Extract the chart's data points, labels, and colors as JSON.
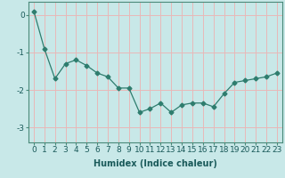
{
  "x": [
    0,
    1,
    2,
    3,
    4,
    5,
    6,
    7,
    8,
    9,
    10,
    11,
    12,
    13,
    14,
    15,
    16,
    17,
    18,
    19,
    20,
    21,
    22,
    23
  ],
  "y": [
    0.1,
    -0.9,
    -1.7,
    -1.3,
    -1.2,
    -1.35,
    -1.55,
    -1.65,
    -1.95,
    -1.95,
    -2.6,
    -2.5,
    -2.35,
    -2.6,
    -2.4,
    -2.35,
    -2.35,
    -2.45,
    -2.1,
    -1.8,
    -1.75,
    -1.7,
    -1.65,
    -1.55
  ],
  "line_color": "#2e7d6e",
  "marker": "D",
  "marker_size": 2.5,
  "bg_color": "#c8e8e8",
  "grid_color": "#e8b8b8",
  "xlabel": "Humidex (Indice chaleur)",
  "ylim": [
    -3.4,
    0.35
  ],
  "xlim": [
    -0.5,
    23.5
  ],
  "yticks": [
    0,
    -1,
    -2,
    -3
  ],
  "xticks": [
    0,
    1,
    2,
    3,
    4,
    5,
    6,
    7,
    8,
    9,
    10,
    11,
    12,
    13,
    14,
    15,
    16,
    17,
    18,
    19,
    20,
    21,
    22,
    23
  ],
  "label_fontsize": 7,
  "tick_fontsize": 6.5
}
